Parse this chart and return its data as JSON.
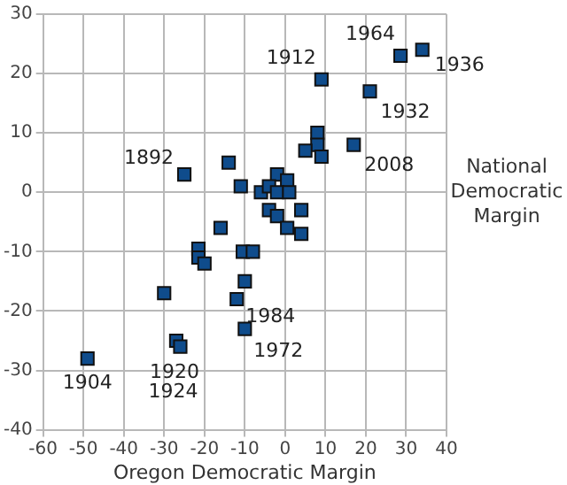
{
  "chart_data": {
    "type": "scatter",
    "xlabel": "Oregon Democratic Margin",
    "ylabel": "National Democratic Margin",
    "series": [
      {
        "color": "#0f4c8c",
        "x": [
          -25,
          -14,
          -11,
          -16,
          9,
          28.6,
          34,
          21,
          17,
          8,
          8,
          5,
          9,
          -2,
          -6,
          -4,
          0.5,
          -2,
          1,
          -4,
          -2,
          0.5,
          4,
          4,
          -10.5,
          -8,
          -21.5,
          -21.5,
          -20,
          -10,
          -12,
          -10,
          -30,
          -27,
          -26,
          -49
        ],
        "values": [
          3,
          5,
          1,
          -6,
          19,
          23,
          24,
          17,
          8,
          10,
          8,
          7,
          6,
          3,
          0,
          1,
          2,
          0,
          0,
          -3,
          -4,
          -6,
          -3,
          -7,
          -10,
          -10,
          -9.5,
          -11,
          -12,
          -15,
          -18,
          -23,
          -17,
          -25,
          -26,
          -28
        ]
      }
    ],
    "xlim": [
      -60,
      40
    ],
    "xticks": [
      -60,
      -50,
      -40,
      -30,
      -20,
      -10,
      0,
      10,
      20,
      30,
      40
    ],
    "ylim": [
      -40,
      30
    ],
    "yticks": [
      -40,
      -30,
      -20,
      -10,
      0,
      10,
      20,
      30
    ],
    "grid": true,
    "marker": "square",
    "legend": false,
    "annotations": [
      {
        "text": "1892",
        "x": -25,
        "y": 3
      },
      {
        "text": "1912",
        "x": 9,
        "y": 19
      },
      {
        "text": "1964",
        "x": 28.6,
        "y": 23
      },
      {
        "text": "1936",
        "x": 34,
        "y": 24
      },
      {
        "text": "1932",
        "x": 21,
        "y": 17
      },
      {
        "text": "2008",
        "x": 17,
        "y": 8
      },
      {
        "text": "1984",
        "x": -12,
        "y": -18
      },
      {
        "text": "1972",
        "x": -10,
        "y": -23
      },
      {
        "text": "1920",
        "x": -27,
        "y": -25
      },
      {
        "text": "1924",
        "x": -26,
        "y": -26
      },
      {
        "text": "1904",
        "x": -49,
        "y": -28
      }
    ]
  }
}
